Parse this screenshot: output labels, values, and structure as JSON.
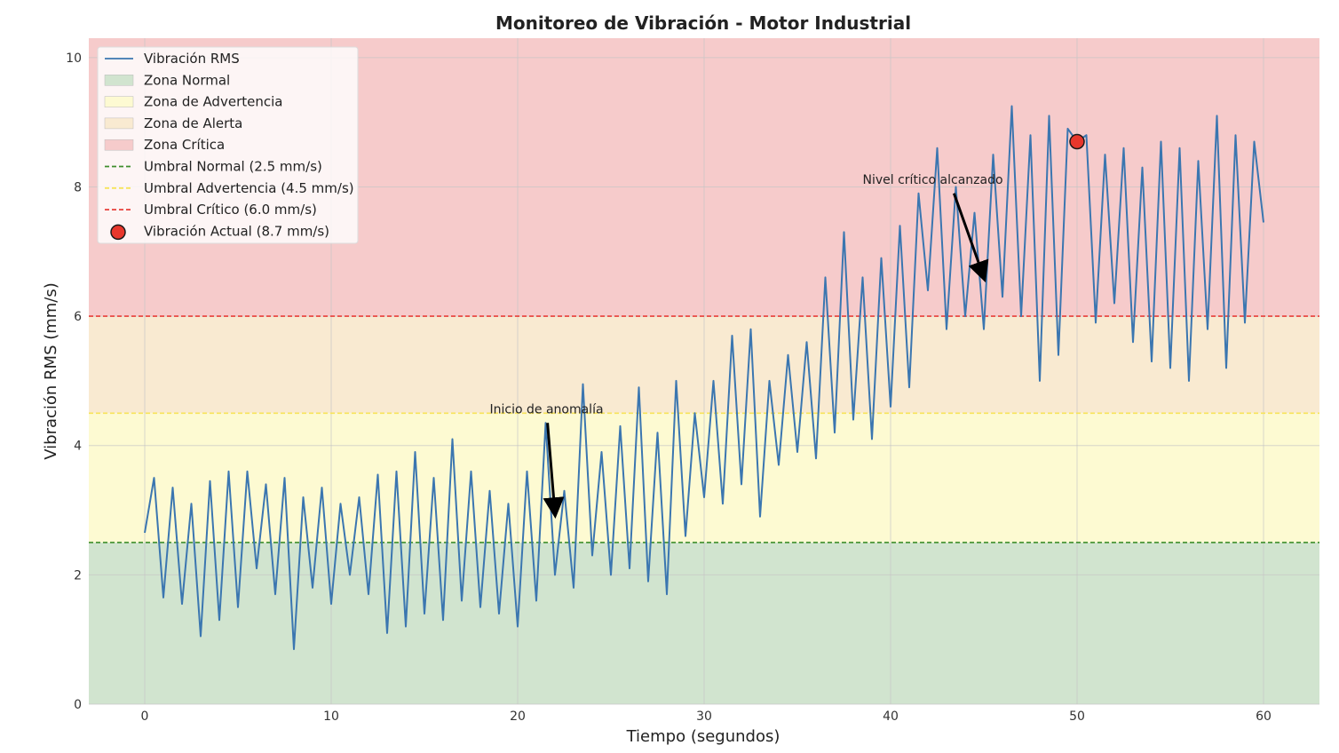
{
  "chart_data": {
    "type": "line",
    "title": "Monitoreo de Vibración - Motor Industrial",
    "xlabel": "Tiempo (segundos)",
    "ylabel": "Vibración RMS (mm/s)",
    "xlim": [
      -3,
      63
    ],
    "ylim": [
      0,
      10.3
    ],
    "xticks": [
      0,
      10,
      20,
      30,
      40,
      50,
      60
    ],
    "yticks": [
      0,
      2,
      4,
      6,
      8,
      10
    ],
    "grid": true,
    "legend_position": "top-left",
    "zones": [
      {
        "name": "Zona Normal",
        "from": 0,
        "to": 2.5,
        "color": "#d1e4cf"
      },
      {
        "name": "Zona de Advertencia",
        "from": 2.5,
        "to": 4.5,
        "color": "#fdfad2"
      },
      {
        "name": "Zona de Alerta",
        "from": 4.5,
        "to": 6.0,
        "color": "#f9ead1"
      },
      {
        "name": "Zona Crítica",
        "from": 6.0,
        "to": 10.3,
        "color": "#f6cbcb"
      }
    ],
    "thresholds": [
      {
        "name": "Umbral Normal (2.5 mm/s)",
        "value": 2.5,
        "color": "#3e8e2c"
      },
      {
        "name": "Umbral Advertencia (4.5 mm/s)",
        "value": 4.5,
        "color": "#f7e45a"
      },
      {
        "name": "Umbral Crítico (6.0 mm/s)",
        "value": 6.0,
        "color": "#e8403a"
      }
    ],
    "series": [
      {
        "name": "Vibración RMS",
        "color": "#3b76b0",
        "x": [
          0.0,
          0.5,
          1.0,
          1.5,
          2.0,
          2.5,
          3.0,
          3.5,
          4.0,
          4.5,
          5.0,
          5.5,
          6.0,
          6.5,
          7.0,
          7.5,
          8.0,
          8.5,
          9.0,
          9.5,
          10.0,
          10.5,
          11.0,
          11.5,
          12.0,
          12.5,
          13.0,
          13.5,
          14.0,
          14.5,
          15.0,
          15.5,
          16.0,
          16.5,
          17.0,
          17.5,
          18.0,
          18.5,
          19.0,
          19.5,
          20.0,
          20.5,
          21.0,
          21.5,
          22.0,
          22.5,
          23.0,
          23.5,
          24.0,
          24.5,
          25.0,
          25.5,
          26.0,
          26.5,
          27.0,
          27.5,
          28.0,
          28.5,
          29.0,
          29.5,
          30.0,
          30.5,
          31.0,
          31.5,
          32.0,
          32.5,
          33.0,
          33.5,
          34.0,
          34.5,
          35.0,
          35.5,
          36.0,
          36.5,
          37.0,
          37.5,
          38.0,
          38.5,
          39.0,
          39.5,
          40.0,
          40.5,
          41.0,
          41.5,
          42.0,
          42.5,
          43.0,
          43.5,
          44.0,
          44.5,
          45.0,
          45.5,
          46.0,
          46.5,
          47.0,
          47.5,
          48.0,
          48.5,
          49.0,
          49.5,
          50.0,
          50.5,
          51.0,
          51.5,
          52.0,
          52.5,
          53.0,
          53.5,
          54.0,
          54.5,
          55.0,
          55.5,
          56.0,
          56.5,
          57.0,
          57.5,
          58.0,
          58.5,
          59.0,
          59.5,
          60.0
        ],
        "values": [
          2.65,
          3.5,
          1.65,
          3.35,
          1.55,
          3.1,
          1.05,
          3.45,
          1.3,
          3.6,
          1.5,
          3.6,
          2.1,
          3.4,
          1.7,
          3.5,
          0.85,
          3.2,
          1.8,
          3.35,
          1.55,
          3.1,
          2.0,
          3.2,
          1.7,
          3.55,
          1.1,
          3.6,
          1.2,
          3.9,
          1.4,
          3.5,
          1.3,
          4.1,
          1.6,
          3.6,
          1.5,
          3.3,
          1.4,
          3.1,
          1.2,
          3.6,
          1.6,
          4.35,
          2.0,
          3.3,
          1.8,
          4.95,
          2.3,
          3.9,
          2.0,
          4.3,
          2.1,
          4.9,
          1.9,
          4.2,
          1.7,
          5.0,
          2.6,
          4.5,
          3.2,
          5.0,
          3.1,
          5.7,
          3.4,
          5.8,
          2.9,
          5.0,
          3.7,
          5.4,
          3.9,
          5.6,
          3.8,
          6.6,
          4.2,
          7.3,
          4.4,
          6.6,
          4.1,
          6.9,
          4.6,
          7.4,
          4.9,
          7.9,
          6.4,
          8.6,
          5.8,
          8.0,
          6.0,
          7.6,
          5.8,
          8.5,
          6.3,
          9.25,
          6.0,
          8.8,
          5.0,
          9.1,
          5.4,
          8.9,
          8.7,
          8.8,
          5.9,
          8.5,
          6.2,
          8.6,
          5.6,
          8.3,
          5.3,
          8.7,
          5.2,
          8.6,
          5.0,
          8.4,
          5.8,
          9.1,
          5.2,
          8.8,
          5.9,
          8.7,
          7.45
        ]
      }
    ],
    "current_point": {
      "name": "Vibración Actual (8.7 mm/s)",
      "x": 50,
      "y": 8.7,
      "color": "#e8372c"
    },
    "annotations": [
      {
        "text": "Inicio de anomalía",
        "text_x": 18.5,
        "text_y": 4.5,
        "arrow_from": [
          21.6,
          4.35
        ],
        "arrow_to": [
          22.0,
          2.95
        ]
      },
      {
        "text": "Nivel crítico alcanzado",
        "text_x": 38.5,
        "text_y": 8.05,
        "arrow_from": [
          43.4,
          7.9
        ],
        "arrow_to": [
          45.0,
          6.6
        ]
      }
    ]
  }
}
